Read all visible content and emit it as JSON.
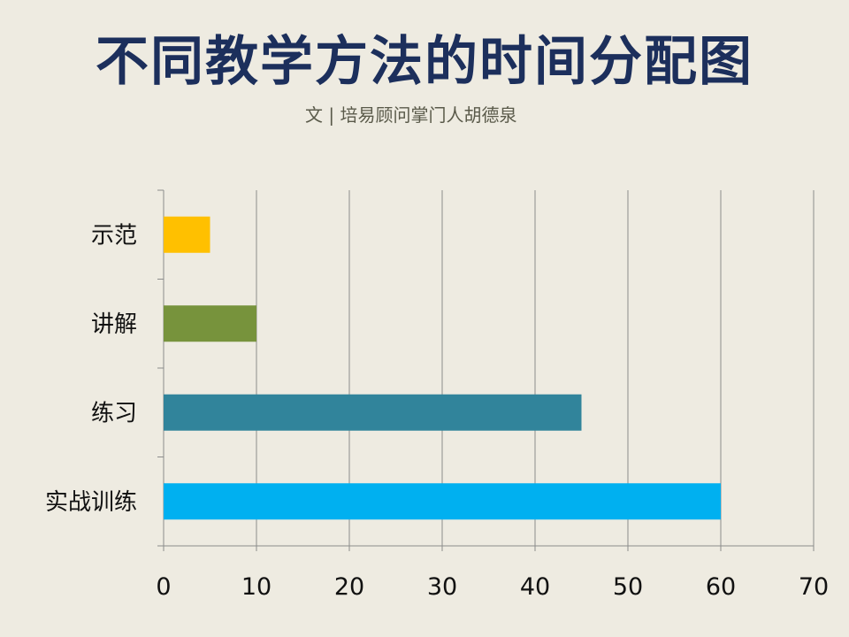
{
  "title": "不同教学方法的时间分配图",
  "subtitle": "文 | 培易顾问掌门人胡德泉",
  "chart_data": {
    "type": "bar",
    "orientation": "horizontal",
    "categories": [
      "示范",
      "讲解",
      "练习",
      "实战训练"
    ],
    "values": [
      5,
      10,
      45,
      60
    ],
    "colors": [
      "#ffc000",
      "#77933c",
      "#31849b",
      "#00b0f0"
    ],
    "xlim": [
      0,
      70
    ],
    "xticks": [
      0,
      10,
      20,
      30,
      40,
      50,
      60,
      70
    ],
    "grid": "vertical",
    "legend": "none"
  }
}
